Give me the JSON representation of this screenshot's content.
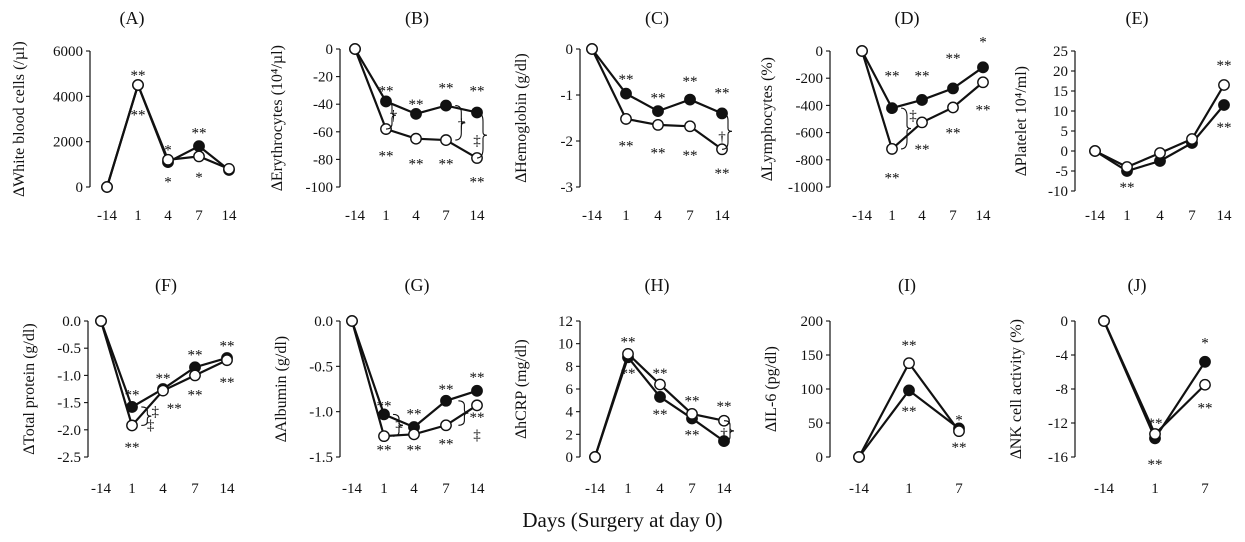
{
  "figure": {
    "x_axis_label": "Days   (Surgery at day 0)"
  },
  "chart_data": [
    {
      "panel": "(A)",
      "type": "line",
      "ylabel": "∆White blood cells (/µl)",
      "categories": [
        "-14",
        "1",
        "4",
        "7",
        "14"
      ],
      "ylim": [
        0,
        6000
      ],
      "yticks": [
        0,
        2000,
        4000,
        6000
      ],
      "ytick_labels": [
        "0",
        "2000",
        "4000",
        "6000"
      ],
      "series": [
        {
          "marker": "filled",
          "values": [
            0,
            4500,
            1100,
            1800,
            750
          ]
        },
        {
          "marker": "open",
          "values": [
            0,
            4500,
            1200,
            1350,
            800
          ]
        }
      ],
      "annotations": [
        {
          "text": "**",
          "x": 1,
          "y": 4950
        },
        {
          "text": "**",
          "x": 1,
          "y": 3200
        },
        {
          "text": "*",
          "x": 2,
          "y": 1650
        },
        {
          "text": "*",
          "x": 2,
          "y": 250
        },
        {
          "text": "**",
          "x": 3,
          "y": 2400
        },
        {
          "text": "*",
          "x": 3,
          "y": 450
        }
      ]
    },
    {
      "panel": "(B)",
      "type": "line",
      "ylabel": "∆Erythrocytes (10⁴/µl)",
      "categories": [
        "-14",
        "1",
        "4",
        "7",
        "14"
      ],
      "ylim": [
        -100,
        0
      ],
      "yticks": [
        -100,
        -80,
        -60,
        -40,
        -20,
        0
      ],
      "ytick_labels": [
        "-100",
        "-80",
        "-60",
        "-40",
        "-20",
        "0"
      ],
      "series": [
        {
          "marker": "filled",
          "values": [
            0,
            -38,
            -47,
            -41,
            -46
          ]
        },
        {
          "marker": "open",
          "values": [
            0,
            -58,
            -65,
            -66,
            -79
          ]
        }
      ],
      "annotations": [
        {
          "text": "**",
          "x": 1,
          "y": -30
        },
        {
          "text": "**",
          "x": 1,
          "y": -77
        },
        {
          "text": "**",
          "x": 2,
          "y": -40
        },
        {
          "text": "**",
          "x": 2,
          "y": -83
        },
        {
          "text": "**",
          "x": 3,
          "y": -28
        },
        {
          "text": "**",
          "x": 3,
          "y": -83
        },
        {
          "text": "**",
          "x": 4,
          "y": -30
        },
        {
          "text": "**",
          "x": 4,
          "y": -96
        },
        {
          "text": "†",
          "x": 1.25,
          "y": -48
        },
        {
          "text": "†",
          "x": 3.5,
          "y": -54
        },
        {
          "text": "‡",
          "x": 4.55,
          "y": -66
        }
      ],
      "brackets": [
        {
          "x": 1,
          "from": -38,
          "to": -58
        },
        {
          "x": 3.3,
          "from": -41,
          "to": -66
        },
        {
          "x": 4.35,
          "from": -46,
          "to": -79
        }
      ]
    },
    {
      "panel": "(C)",
      "type": "line",
      "ylabel": "∆Hemoglobin  (g/dl)",
      "categories": [
        "-14",
        "1",
        "4",
        "7",
        "14"
      ],
      "ylim": [
        -3,
        0
      ],
      "yticks": [
        -3,
        -2,
        -1,
        0
      ],
      "ytick_labels": [
        "-3",
        "-2",
        "-1",
        "0"
      ],
      "series": [
        {
          "marker": "filled",
          "values": [
            0,
            -0.97,
            -1.35,
            -1.1,
            -1.4
          ]
        },
        {
          "marker": "open",
          "values": [
            0,
            -1.52,
            -1.65,
            -1.68,
            -2.18
          ]
        }
      ],
      "annotations": [
        {
          "text": "**",
          "x": 1,
          "y": -0.65
        },
        {
          "text": "**",
          "x": 1,
          "y": -2.1
        },
        {
          "text": "**",
          "x": 2,
          "y": -1.05
        },
        {
          "text": "**",
          "x": 2,
          "y": -2.25
        },
        {
          "text": "**",
          "x": 3,
          "y": -0.7
        },
        {
          "text": "**",
          "x": 3,
          "y": -2.3
        },
        {
          "text": "**",
          "x": 4,
          "y": -0.95
        },
        {
          "text": "**",
          "x": 4,
          "y": -2.7
        },
        {
          "text": "†",
          "x": 4.6,
          "y": -1.9
        }
      ],
      "brackets": [
        {
          "x": 4.35,
          "from": -1.4,
          "to": -2.18
        }
      ]
    },
    {
      "panel": "(D)",
      "type": "line",
      "ylabel": "∆Lymphocytes  (%)",
      "categories": [
        "-14",
        "1",
        "4",
        "7",
        "14"
      ],
      "ylim": [
        -1000,
        0
      ],
      "yticks": [
        -1000,
        -800,
        -600,
        -400,
        -200,
        0
      ],
      "ytick_labels": [
        "-1000",
        "-800",
        "-600",
        "-400",
        "-200",
        "0"
      ],
      "series": [
        {
          "marker": "filled",
          "values": [
            0,
            -420,
            -360,
            -275,
            -120
          ]
        },
        {
          "marker": "open",
          "values": [
            0,
            -720,
            -525,
            -415,
            -230
          ]
        }
      ],
      "annotations": [
        {
          "text": "**",
          "x": 1,
          "y": -180
        },
        {
          "text": "**",
          "x": 1,
          "y": -930
        },
        {
          "text": "**",
          "x": 2,
          "y": -180
        },
        {
          "text": "**",
          "x": 2,
          "y": -720
        },
        {
          "text": "**",
          "x": 3,
          "y": -50
        },
        {
          "text": "**",
          "x": 3,
          "y": -600
        },
        {
          "text": "*",
          "x": 4,
          "y": 70
        },
        {
          "text": "**",
          "x": 4,
          "y": -430
        },
        {
          "text": "‡",
          "x": 1.7,
          "y": -470
        }
      ],
      "brackets": [
        {
          "x": 1.3,
          "from": -420,
          "to": -720
        }
      ]
    },
    {
      "panel": "(E)",
      "type": "line",
      "ylabel": "∆Platelet  10⁴/ml)",
      "categories": [
        "-14",
        "1",
        "4",
        "7",
        "14"
      ],
      "ylim": [
        -10,
        25
      ],
      "yticks": [
        -10,
        -5,
        0,
        5,
        10,
        15,
        20,
        25
      ],
      "ytick_labels": [
        "-10",
        "-5",
        "0",
        "5",
        "10",
        "15",
        "20",
        "25"
      ],
      "series": [
        {
          "marker": "filled",
          "values": [
            0,
            -5,
            -2.5,
            2,
            11.5
          ]
        },
        {
          "marker": "open",
          "values": [
            0,
            -4,
            -0.5,
            3,
            16.5
          ]
        }
      ],
      "annotations": [
        {
          "text": "**",
          "x": 1,
          "y": -9
        },
        {
          "text": "**",
          "x": 4,
          "y": 21.5
        },
        {
          "text": "**",
          "x": 4,
          "y": 6
        }
      ]
    },
    {
      "panel": "(F)",
      "type": "line",
      "ylabel": "∆Total protein (g/dl)",
      "categories": [
        "-14",
        "1",
        "4",
        "7",
        "14"
      ],
      "ylim": [
        -2.5,
        0
      ],
      "yticks": [
        -2.5,
        -2,
        -1.5,
        -1,
        -0.5,
        0
      ],
      "ytick_labels": [
        "-2.5",
        "-2.0",
        "-1.5",
        "-1.0",
        "-0.5",
        "0.0"
      ],
      "series": [
        {
          "marker": "filled",
          "values": [
            0,
            -1.58,
            -1.25,
            -0.85,
            -0.68
          ]
        },
        {
          "marker": "open",
          "values": [
            0,
            -1.92,
            -1.28,
            -1.0,
            -0.72
          ]
        }
      ],
      "annotations": [
        {
          "text": "**",
          "x": 1,
          "y": -1.35
        },
        {
          "text": "**",
          "x": 1,
          "y": -2.32
        },
        {
          "text": "**",
          "x": 2,
          "y": -1.05
        },
        {
          "text": "**",
          "x": 2.35,
          "y": -1.6
        },
        {
          "text": "**",
          "x": 3,
          "y": -0.62
        },
        {
          "text": "**",
          "x": 3,
          "y": -1.35
        },
        {
          "text": "**",
          "x": 4,
          "y": -0.45
        },
        {
          "text": "**",
          "x": 4,
          "y": -1.12
        },
        {
          "text": "‡",
          "x": 1.6,
          "y": -1.9
        },
        {
          "text": "‡",
          "x": 1.75,
          "y": -1.65
        }
      ],
      "brackets": [
        {
          "x": 1.3,
          "from": -1.58,
          "to": -1.92
        }
      ]
    },
    {
      "panel": "(G)",
      "type": "line",
      "ylabel": "∆Albumin (g/dl)",
      "categories": [
        "-14",
        "1",
        "4",
        "7",
        "14"
      ],
      "ylim": [
        -1.5,
        0
      ],
      "yticks": [
        -1.5,
        -1,
        -0.5,
        0
      ],
      "ytick_labels": [
        "-1.5",
        "-1.0",
        "-0.5",
        "0.0"
      ],
      "series": [
        {
          "marker": "filled",
          "values": [
            0,
            -1.03,
            -1.17,
            -0.88,
            -0.77
          ]
        },
        {
          "marker": "open",
          "values": [
            0,
            -1.27,
            -1.25,
            -1.15,
            -0.93
          ]
        }
      ],
      "annotations": [
        {
          "text": "**",
          "x": 1,
          "y": -0.93
        },
        {
          "text": "**",
          "x": 1,
          "y": -1.42
        },
        {
          "text": "**",
          "x": 2,
          "y": -1.02
        },
        {
          "text": "**",
          "x": 2,
          "y": -1.42
        },
        {
          "text": "**",
          "x": 3,
          "y": -0.75
        },
        {
          "text": "**",
          "x": 3,
          "y": -1.35
        },
        {
          "text": "**",
          "x": 4,
          "y": -0.62
        },
        {
          "text": "**",
          "x": 4,
          "y": -1.06
        },
        {
          "text": "‡",
          "x": 1.5,
          "y": -1.13
        },
        {
          "text": "‡",
          "x": 4.0,
          "y": -1.25
        }
      ],
      "brackets": [
        {
          "x": 1.3,
          "from": -1.03,
          "to": -1.27
        },
        {
          "x": 3.4,
          "from": -0.88,
          "to": -1.15
        }
      ]
    },
    {
      "panel": "(H)",
      "type": "line",
      "ylabel": "∆hCRP (mg/dl)",
      "categories": [
        "-14",
        "1",
        "4",
        "7",
        "14"
      ],
      "ylim": [
        0,
        12
      ],
      "yticks": [
        0,
        2,
        4,
        6,
        8,
        10,
        12
      ],
      "ytick_labels": [
        "0",
        "2",
        "4",
        "6",
        "8",
        "10",
        "12"
      ],
      "series": [
        {
          "marker": "filled",
          "values": [
            0,
            8.8,
            5.3,
            3.4,
            1.4
          ]
        },
        {
          "marker": "open",
          "values": [
            0,
            9.1,
            6.4,
            3.8,
            3.2
          ]
        }
      ],
      "annotations": [
        {
          "text": "**",
          "x": 1,
          "y": 10.2
        },
        {
          "text": "**",
          "x": 1,
          "y": 7.4
        },
        {
          "text": "**",
          "x": 2,
          "y": 7.4
        },
        {
          "text": "**",
          "x": 2,
          "y": 3.8
        },
        {
          "text": "**",
          "x": 3,
          "y": 5.0
        },
        {
          "text": "**",
          "x": 3,
          "y": 2.0
        },
        {
          "text": "**",
          "x": 4,
          "y": 4.5
        },
        {
          "text": "†",
          "x": 4.6,
          "y": 2.1
        }
      ],
      "brackets": [
        {
          "x": 4.35,
          "from": 1.4,
          "to": 3.2
        }
      ]
    },
    {
      "panel": "(I)",
      "type": "line",
      "ylabel": "∆IL-6 (pg/dl)",
      "categories": [
        "-14",
        "1",
        "7"
      ],
      "ylim": [
        0,
        200
      ],
      "yticks": [
        0,
        50,
        100,
        150,
        200
      ],
      "ytick_labels": [
        "0",
        "50",
        "100",
        "150",
        "200"
      ],
      "series": [
        {
          "marker": "filled",
          "values": [
            0,
            98,
            42
          ]
        },
        {
          "marker": "open",
          "values": [
            0,
            138,
            38
          ]
        }
      ],
      "annotations": [
        {
          "text": "**",
          "x": 1,
          "y": 165
        },
        {
          "text": "**",
          "x": 1,
          "y": 68
        },
        {
          "text": "*",
          "x": 2,
          "y": 55
        },
        {
          "text": "**",
          "x": 2,
          "y": 15
        }
      ]
    },
    {
      "panel": "(J)",
      "type": "line",
      "ylabel": "∆NK cell activity  (%)",
      "categories": [
        "-14",
        "1",
        "7"
      ],
      "ylim": [
        -16,
        0
      ],
      "yticks": [
        -16,
        -12,
        -8,
        -4,
        0
      ],
      "ytick_labels": [
        "-16",
        "-12",
        "-8",
        "-4",
        "0"
      ],
      "series": [
        {
          "marker": "filled",
          "values": [
            0,
            -13.8,
            -4.8
          ]
        },
        {
          "marker": "open",
          "values": [
            0,
            -13.3,
            -7.5
          ]
        }
      ],
      "annotations": [
        {
          "text": "**",
          "x": 1,
          "y": -12
        },
        {
          "text": "**",
          "x": 1,
          "y": -16.8
        },
        {
          "text": "*",
          "x": 2,
          "y": -2.5
        },
        {
          "text": "**",
          "x": 2,
          "y": -10.2
        }
      ]
    }
  ]
}
